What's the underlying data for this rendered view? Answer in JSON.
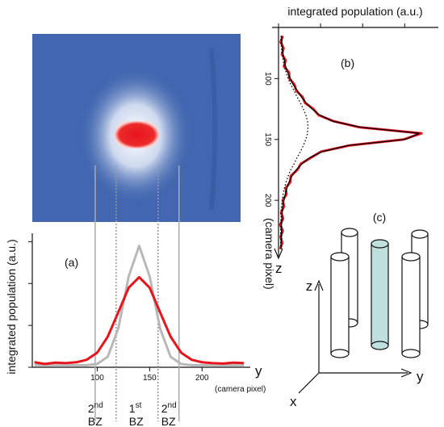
{
  "chart_data": [
    {
      "type": "line",
      "panel_label": "(a)",
      "value_axis": "y",
      "ylabel": "integrated population (a.u.)",
      "xlabel": "y",
      "xunit": "(camera pixel)",
      "x": [
        40,
        50,
        60,
        70,
        80,
        90,
        100,
        110,
        120,
        130,
        140,
        150,
        160,
        170,
        180,
        190,
        200,
        210,
        220,
        230,
        240
      ],
      "series": [
        {
          "color": "#b8b8b8",
          "linewidth": 3,
          "style": "solid",
          "values": [
            0.05,
            0.05,
            0.05,
            0.05,
            0.05,
            0.05,
            0.08,
            0.25,
            0.92,
            2.17,
            2.9,
            2.17,
            0.92,
            0.25,
            0.08,
            0.05,
            0.05,
            0.05,
            0.05,
            0.05,
            0.05
          ]
        },
        {
          "color": "#e8141c",
          "linewidth": 3,
          "style": "solid",
          "values": [
            0.12,
            0.08,
            0.11,
            0.1,
            0.12,
            0.18,
            0.35,
            0.73,
            1.31,
            1.9,
            2.15,
            1.9,
            1.31,
            0.73,
            0.35,
            0.18,
            0.12,
            0.1,
            0.09,
            0.11,
            0.1
          ]
        }
      ],
      "xlim": [
        38,
        246
      ],
      "xticks": [
        100,
        150,
        200
      ],
      "ylim": [
        0,
        3.2
      ],
      "yticks": [
        0,
        1,
        2,
        3
      ],
      "bz_lines": {
        "solid": [
          98,
          178
        ],
        "dotted": [
          118,
          158
        ]
      },
      "regions": [
        {
          "number": "2",
          "sup": "nd",
          "name": "BZ"
        },
        {
          "number": "1",
          "sup": "st",
          "name": "BZ"
        },
        {
          "number": "2",
          "sup": "nd",
          "name": "BZ"
        }
      ]
    },
    {
      "type": "line",
      "panel_label": "(b)",
      "value_axis": "x",
      "ylabel": "integrated population (a.u.)",
      "xlabel": "z",
      "xunit": "(camera pixel)",
      "x": [
        65,
        70,
        75,
        80,
        85,
        90,
        95,
        100,
        105,
        110,
        115,
        120,
        125,
        130,
        135,
        140,
        145,
        150,
        155,
        160,
        165,
        170,
        175,
        180,
        185,
        190,
        195,
        200,
        205,
        210,
        215,
        220,
        225,
        230,
        235,
        240
      ],
      "series": [
        {
          "color": "#e8141c",
          "linewidth": 3,
          "style": "solid",
          "values": [
            0.1,
            0.05,
            0.12,
            0.08,
            0.17,
            0.13,
            0.25,
            0.26,
            0.38,
            0.42,
            0.57,
            0.63,
            0.83,
            0.95,
            1.31,
            1.92,
            3.4,
            2.97,
            1.68,
            1.01,
            0.77,
            0.53,
            0.45,
            0.29,
            0.28,
            0.17,
            0.19,
            0.1,
            0.13,
            0.06,
            0.11,
            0.04,
            0.1,
            0.05,
            0.09,
            0.04
          ]
        },
        {
          "color": "#000000",
          "linewidth": 1.3,
          "style": "solid",
          "values": [
            0.08,
            0.08,
            0.09,
            0.11,
            0.14,
            0.17,
            0.22,
            0.28,
            0.35,
            0.45,
            0.54,
            0.66,
            0.8,
            0.98,
            1.28,
            1.95,
            3.35,
            3.01,
            1.65,
            1.04,
            0.74,
            0.56,
            0.42,
            0.32,
            0.25,
            0.2,
            0.16,
            0.13,
            0.1,
            0.09,
            0.08,
            0.07,
            0.07,
            0.07,
            0.06,
            0.06
          ]
        },
        {
          "color": "#000000",
          "linewidth": 1.3,
          "style": "dotted",
          "values": [
            0.06,
            0.06,
            0.07,
            0.09,
            0.11,
            0.14,
            0.18,
            0.23,
            0.29,
            0.37,
            0.44,
            0.52,
            0.59,
            0.65,
            0.69,
            0.7,
            0.69,
            0.65,
            0.59,
            0.52,
            0.44,
            0.37,
            0.29,
            0.23,
            0.18,
            0.14,
            0.11,
            0.09,
            0.07,
            0.06,
            0.06,
            0.05,
            0.05,
            0.05,
            0.05,
            0.05
          ]
        }
      ],
      "xlim": [
        62,
        241
      ],
      "xticks": [
        100,
        150,
        200
      ],
      "ylim": [
        0,
        3.8
      ],
      "yticks": [
        0,
        1,
        2,
        3
      ]
    }
  ],
  "diagram": {
    "label": "(c)",
    "axes": {
      "x": "x",
      "y": "y",
      "z": "z"
    }
  }
}
